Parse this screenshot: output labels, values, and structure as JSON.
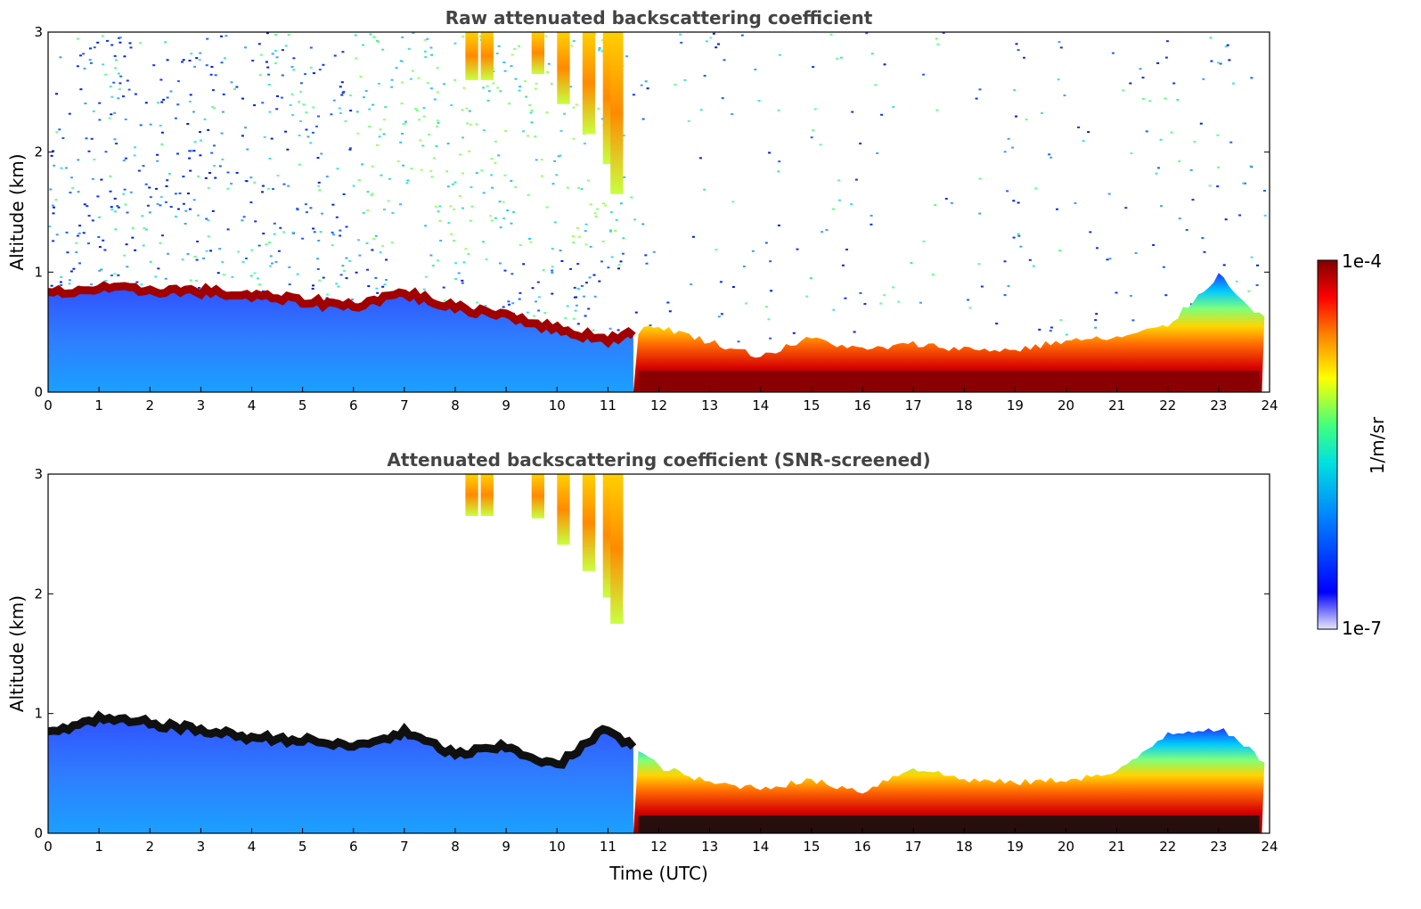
{
  "chart_data": [
    {
      "type": "heatmap",
      "title": "Raw attenuated backscattering coefficient",
      "xlabel": "",
      "ylabel": "Altitude (km)",
      "xlim": [
        0,
        24
      ],
      "ylim": [
        0,
        3
      ],
      "xticks": [
        "0",
        "1",
        "2",
        "3",
        "4",
        "5",
        "6",
        "7",
        "8",
        "9",
        "10",
        "11",
        "12",
        "13",
        "14",
        "15",
        "16",
        "17",
        "18",
        "19",
        "20",
        "21",
        "22",
        "23",
        "24"
      ],
      "yticks": [
        "0",
        "1",
        "2",
        "3"
      ],
      "colorbar": {
        "label": "1/m/sr",
        "min_label": "1e-7",
        "max_label": "1e-4",
        "scale": "log"
      },
      "boundary_layer_top_km": [
        0.82,
        0.86,
        0.85,
        0.84,
        0.8,
        0.76,
        0.72,
        0.83,
        0.7,
        0.65,
        0.52,
        0.44,
        0.55,
        0.42,
        0.3,
        0.45,
        0.35,
        0.4,
        0.36,
        0.35,
        0.43,
        0.45,
        0.55,
        0.98,
        0.56
      ],
      "notes": "Noisy raw lidar signal; elevated features 8-11 UTC between 1.5 and 3 km"
    },
    {
      "type": "heatmap",
      "title": "Attenuated backscattering coefficient (SNR-screened)",
      "xlabel": "Time (UTC)",
      "ylabel": "Altitude (km)",
      "xlim": [
        0,
        24
      ],
      "ylim": [
        0,
        3
      ],
      "xticks": [
        "0",
        "1",
        "2",
        "3",
        "4",
        "5",
        "6",
        "7",
        "8",
        "9",
        "10",
        "11",
        "12",
        "13",
        "14",
        "15",
        "16",
        "17",
        "18",
        "19",
        "20",
        "21",
        "22",
        "23",
        "24"
      ],
      "yticks": [
        "0",
        "1",
        "2",
        "3"
      ],
      "colorbar": {
        "label": "1/m/sr",
        "min_label": "1e-7",
        "max_label": "1e-4",
        "scale": "log"
      },
      "boundary_layer_top_km": [
        0.84,
        0.95,
        0.92,
        0.86,
        0.8,
        0.78,
        0.72,
        0.84,
        0.66,
        0.72,
        0.56,
        0.88,
        0.56,
        0.42,
        0.38,
        0.44,
        0.35,
        0.55,
        0.45,
        0.42,
        0.45,
        0.5,
        0.84,
        0.88,
        0.57
      ],
      "notes": "Screened signal; elevated feature 8-11 UTC between 1.4 and 3 km"
    }
  ]
}
